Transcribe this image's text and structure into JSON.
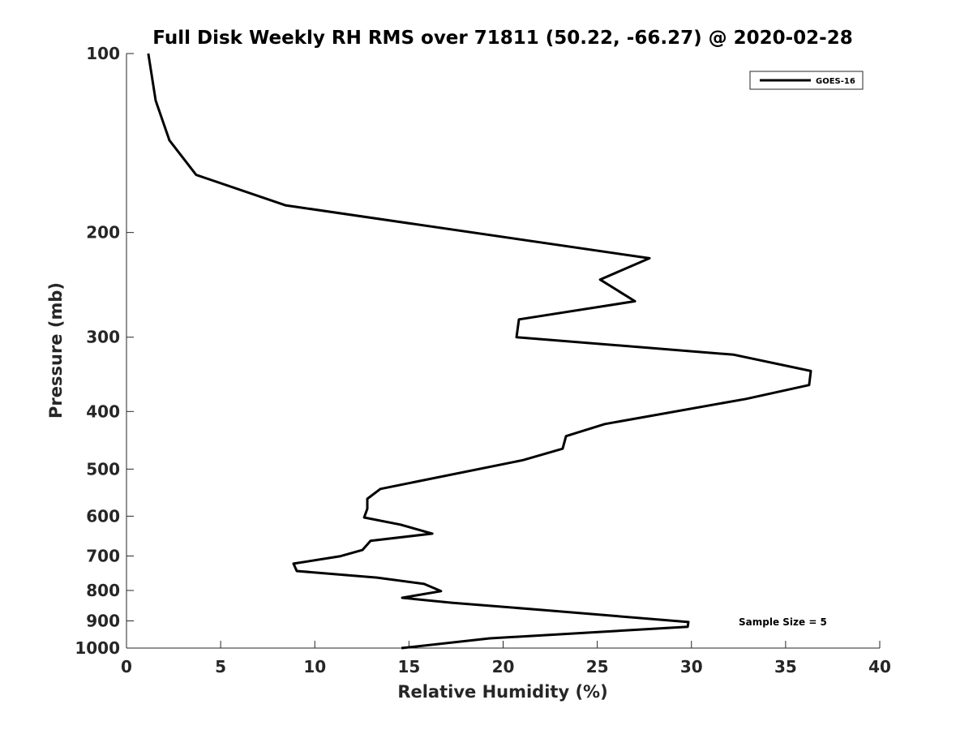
{
  "chart_data": {
    "type": "line",
    "title": "Full Disk Weekly RH RMS over 71811 (50.22, -66.27) @ 2020-02-28",
    "xlabel": "Relative Humidity (%)",
    "ylabel": "Pressure (mb)",
    "xlim": [
      0,
      40
    ],
    "ylim": [
      100,
      1000
    ],
    "yscale": "log",
    "yreversed": true,
    "xticks": [
      "0",
      "5",
      "10",
      "15",
      "20",
      "25",
      "30",
      "35",
      "40"
    ],
    "yticks": [
      "100",
      "200",
      "300",
      "400",
      "500",
      "600",
      "700",
      "800",
      "900",
      "1000"
    ],
    "legend": {
      "placement": "top-right",
      "entries": [
        "GOES-16"
      ]
    },
    "annotation": "Sample Size = 5",
    "grid": false,
    "series": [
      {
        "name": "GOES-16",
        "color": "#000000",
        "points": [
          [
            1.16,
            100
          ],
          [
            1.55,
            120
          ],
          [
            2.28,
            140
          ],
          [
            3.7,
            160
          ],
          [
            8.44,
            180
          ],
          [
            27.77,
            221
          ],
          [
            25.15,
            240
          ],
          [
            27.0,
            261
          ],
          [
            20.84,
            280
          ],
          [
            20.71,
            300
          ],
          [
            32.25,
            321
          ],
          [
            36.34,
            342
          ],
          [
            36.25,
            361
          ],
          [
            32.9,
            381
          ],
          [
            25.4,
            420
          ],
          [
            23.34,
            440
          ],
          [
            23.16,
            462
          ],
          [
            21.05,
            483
          ],
          [
            13.48,
            540
          ],
          [
            12.79,
            561
          ],
          [
            12.79,
            583
          ],
          [
            12.62,
            603
          ],
          [
            14.55,
            620
          ],
          [
            16.24,
            642
          ],
          [
            12.96,
            660
          ],
          [
            12.53,
            684
          ],
          [
            11.32,
            701
          ],
          [
            8.87,
            721
          ],
          [
            9.04,
            742
          ],
          [
            13.3,
            761
          ],
          [
            15.8,
            780
          ],
          [
            16.7,
            802
          ],
          [
            14.64,
            823
          ],
          [
            17.27,
            839
          ],
          [
            22.13,
            863
          ],
          [
            29.84,
            904
          ],
          [
            29.8,
            921
          ],
          [
            19.29,
            963
          ],
          [
            14.6,
            1000
          ]
        ]
      }
    ]
  }
}
